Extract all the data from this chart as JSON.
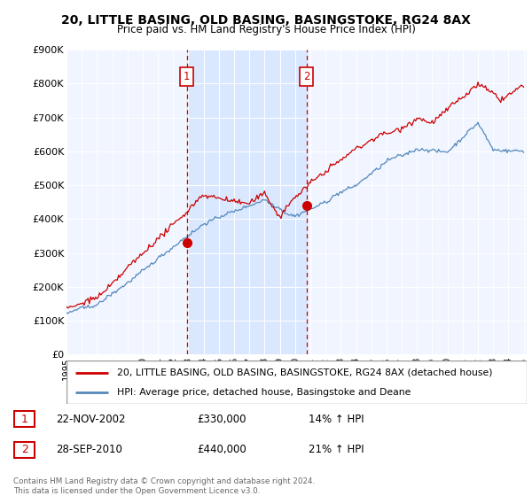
{
  "title": "20, LITTLE BASING, OLD BASING, BASINGSTOKE, RG24 8AX",
  "subtitle": "Price paid vs. HM Land Registry's House Price Index (HPI)",
  "legend_line1": "20, LITTLE BASING, OLD BASING, BASINGSTOKE, RG24 8AX (detached house)",
  "legend_line2": "HPI: Average price, detached house, Basingstoke and Deane",
  "sale1_date": "22-NOV-2002",
  "sale1_price": "£330,000",
  "sale1_hpi": "14% ↑ HPI",
  "sale2_date": "28-SEP-2010",
  "sale2_price": "£440,000",
  "sale2_hpi": "21% ↑ HPI",
  "footer": "Contains HM Land Registry data © Crown copyright and database right 2024.\nThis data is licensed under the Open Government Licence v3.0.",
  "ylim": [
    0,
    900000
  ],
  "yticks": [
    0,
    100000,
    200000,
    300000,
    400000,
    500000,
    600000,
    700000,
    800000,
    900000
  ],
  "ytick_labels": [
    "£0",
    "£100K",
    "£200K",
    "£300K",
    "£400K",
    "£500K",
    "£600K",
    "£700K",
    "£800K",
    "£900K"
  ],
  "red_color": "#cc0000",
  "blue_color": "#5588bb",
  "shade_color": "#ddeeff",
  "bg_color": "#f0f5ff",
  "sale1_x": 2002.9,
  "sale1_y": 330000,
  "sale2_x": 2010.75,
  "sale2_y": 440000,
  "vline1_x": 2002.9,
  "vline2_x": 2010.75,
  "xmin": 1995,
  "xmax": 2025.2
}
